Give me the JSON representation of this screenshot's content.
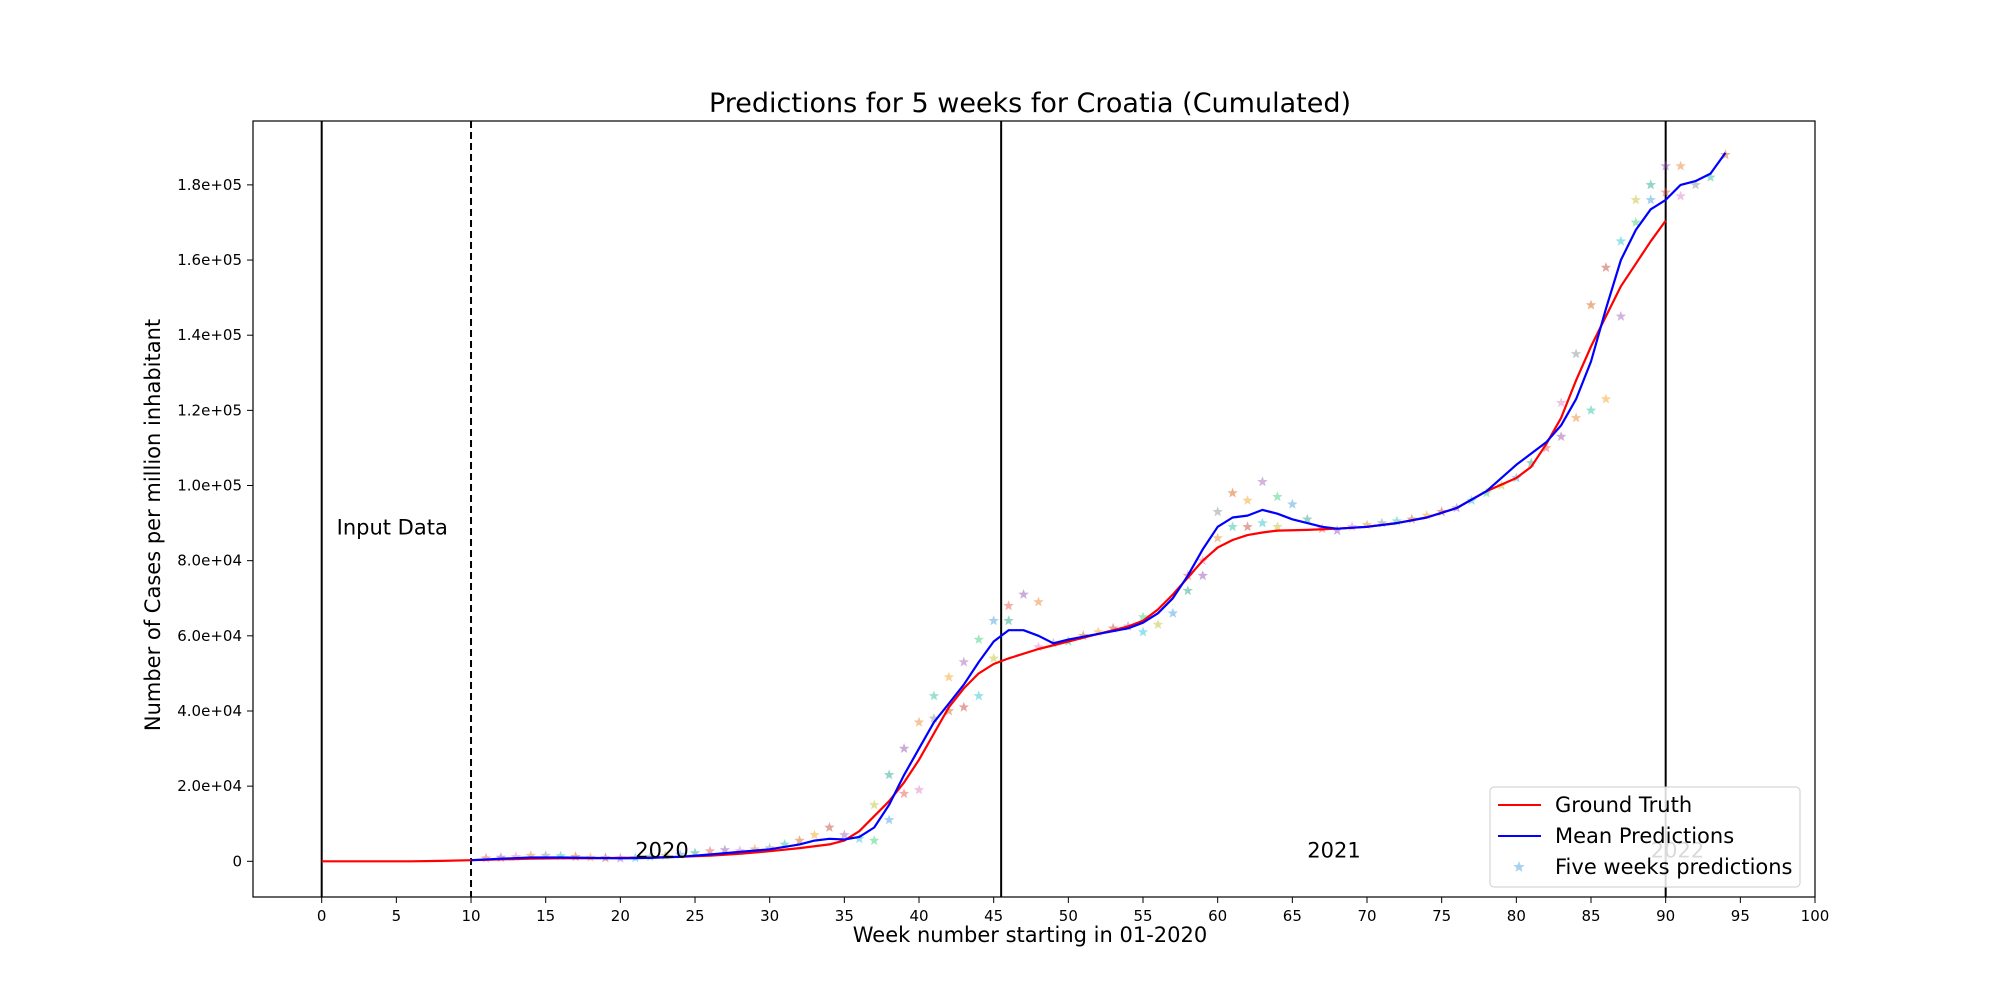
{
  "chart_data": {
    "type": "line",
    "title": "Predictions for 5 weeks for Croatia (Cumulated)",
    "xlabel": "Week number starting in 01-2020",
    "ylabel": "Number of Cases per million inhabitant",
    "xlim": [
      -4.6,
      100
    ],
    "ylim": [
      -9500,
      197000
    ],
    "x_ticks": [
      0,
      5,
      10,
      15,
      20,
      25,
      30,
      35,
      40,
      45,
      50,
      55,
      60,
      65,
      70,
      75,
      80,
      85,
      90,
      95,
      100
    ],
    "y_ticks": [
      0,
      20000,
      40000,
      60000,
      80000,
      100000,
      120000,
      140000,
      160000,
      180000
    ],
    "y_tick_labels": [
      "0",
      "2.0e+04",
      "4.0e+04",
      "6.0e+04",
      "8.0e+04",
      "1.0e+05",
      "1.2e+05",
      "1.4e+05",
      "1.6e+05",
      "1.8e+05"
    ],
    "grid": false,
    "legend_position": "bottom-right",
    "vertical_lines": [
      {
        "x": 0,
        "style": "solid"
      },
      {
        "x": 10,
        "style": "dashed"
      },
      {
        "x": 45.5,
        "style": "solid"
      },
      {
        "x": 90,
        "style": "solid"
      }
    ],
    "annotations": [
      {
        "text": "Input Data",
        "x": 1,
        "y": 87000,
        "color": "#000000"
      },
      {
        "text": "2020",
        "x": 21,
        "y": 1000,
        "color": "#000000"
      },
      {
        "text": "2021",
        "x": 66,
        "y": 1000,
        "color": "#000000"
      },
      {
        "text": "2022",
        "x": 89,
        "y": 1000,
        "color": "#c8c8c8"
      }
    ],
    "series": [
      {
        "name": "Ground Truth",
        "color": "#ff0000",
        "marker": "line",
        "x": [
          0,
          2,
          4,
          6,
          8,
          10,
          12,
          14,
          16,
          18,
          20,
          22,
          24,
          26,
          28,
          30,
          32,
          34,
          35,
          36,
          37,
          38,
          39,
          40,
          41,
          42,
          43,
          44,
          45,
          46,
          48,
          50,
          52,
          54,
          55,
          56,
          57,
          58,
          59,
          60,
          61,
          62,
          63,
          64,
          66,
          68,
          70,
          72,
          74,
          76,
          78,
          80,
          81,
          82,
          83,
          84,
          85,
          86,
          87,
          88,
          89,
          90
        ],
        "values": [
          0,
          0,
          0,
          0,
          100,
          300,
          500,
          700,
          800,
          800,
          900,
          1000,
          1200,
          1500,
          2000,
          2700,
          3500,
          4500,
          5500,
          8000,
          12000,
          16000,
          21000,
          27000,
          34000,
          41000,
          46000,
          50000,
          52500,
          54000,
          56500,
          58500,
          60500,
          62500,
          64000,
          67000,
          71000,
          75500,
          80000,
          83500,
          85500,
          86800,
          87500,
          88000,
          88200,
          88500,
          89000,
          90000,
          91500,
          94000,
          98500,
          102000,
          105000,
          111000,
          118000,
          128000,
          137000,
          145000,
          153000,
          159000,
          165000,
          170500
        ]
      },
      {
        "name": "Mean Predictions",
        "color": "#0000ff",
        "marker": "line",
        "x": [
          10,
          12,
          14,
          16,
          18,
          20,
          22,
          24,
          26,
          28,
          30,
          32,
          33,
          34,
          35,
          36,
          37,
          38,
          39,
          40,
          41,
          42,
          43,
          44,
          45,
          46,
          47,
          48,
          49,
          50,
          52,
          54,
          55,
          56,
          57,
          58,
          59,
          60,
          61,
          62,
          63,
          64,
          65,
          66,
          67,
          68,
          70,
          72,
          74,
          76,
          78,
          80,
          82,
          83,
          84,
          85,
          86,
          87,
          88,
          89,
          90,
          91,
          92,
          93,
          94
        ],
        "values": [
          300,
          700,
          1000,
          1000,
          900,
          800,
          900,
          1200,
          1800,
          2500,
          3200,
          4500,
          5500,
          6000,
          5800,
          6500,
          9000,
          15000,
          23000,
          30000,
          37000,
          42000,
          47000,
          53000,
          58500,
          61500,
          61500,
          60000,
          58000,
          59000,
          60500,
          62000,
          63500,
          66000,
          70000,
          76000,
          83000,
          89000,
          91500,
          92000,
          93500,
          92500,
          91000,
          90000,
          89000,
          88500,
          89000,
          90000,
          91500,
          94000,
          98500,
          105500,
          111500,
          116000,
          123000,
          133000,
          147000,
          160000,
          168000,
          173500,
          176000,
          180000,
          181000,
          183000,
          188500
        ]
      },
      {
        "name": "Five weeks predictions",
        "marker": "star",
        "color": "#6cb4e4",
        "x": [
          11,
          12,
          13,
          14,
          15,
          16,
          17,
          18,
          19,
          20,
          21,
          22,
          23,
          24,
          25,
          26,
          27,
          28,
          29,
          30,
          31,
          32,
          33,
          34,
          35,
          36,
          37,
          37,
          38,
          38,
          39,
          39,
          40,
          40,
          41,
          41,
          42,
          42,
          43,
          43,
          44,
          44,
          45,
          45,
          46,
          46,
          47,
          48,
          48,
          49,
          50,
          51,
          52,
          53,
          54,
          55,
          55,
          56,
          57,
          58,
          58,
          59,
          59,
          60,
          60,
          61,
          61,
          62,
          62,
          63,
          63,
          64,
          64,
          65,
          66,
          67,
          68,
          69,
          70,
          71,
          72,
          73,
          74,
          75,
          76,
          77,
          78,
          79,
          80,
          81,
          82,
          83,
          83,
          84,
          84,
          85,
          85,
          86,
          86,
          87,
          87,
          88,
          88,
          89,
          89,
          90,
          90,
          91,
          91,
          92,
          93,
          94
        ],
        "values": [
          800,
          1000,
          1200,
          1500,
          1500,
          1400,
          1200,
          1000,
          900,
          800,
          900,
          1200,
          1500,
          1800,
          2200,
          2700,
          3000,
          2800,
          3200,
          3500,
          4500,
          5500,
          7000,
          9000,
          7000,
          6000,
          5500,
          15000,
          11000,
          23000,
          18000,
          30000,
          19000,
          37000,
          38000,
          44000,
          40000,
          49000,
          41000,
          53000,
          44000,
          59000,
          54000,
          64000,
          64000,
          68000,
          71000,
          57000,
          69000,
          58000,
          58500,
          60000,
          61000,
          62000,
          62500,
          61000,
          65000,
          63000,
          66000,
          72000,
          76000,
          76000,
          80000,
          86000,
          93000,
          89000,
          98000,
          96000,
          89000,
          101000,
          90000,
          97000,
          89000,
          95000,
          91000,
          88500,
          88000,
          89000,
          89500,
          90000,
          90500,
          91000,
          92000,
          93000,
          94000,
          96000,
          98000,
          100000,
          102000,
          106000,
          110000,
          113000,
          122000,
          118000,
          135000,
          120000,
          148000,
          123000,
          158000,
          145000,
          165000,
          170000,
          176000,
          176000,
          180000,
          178000,
          185000,
          177000,
          185000,
          180000,
          182000,
          188000
        ]
      }
    ]
  }
}
